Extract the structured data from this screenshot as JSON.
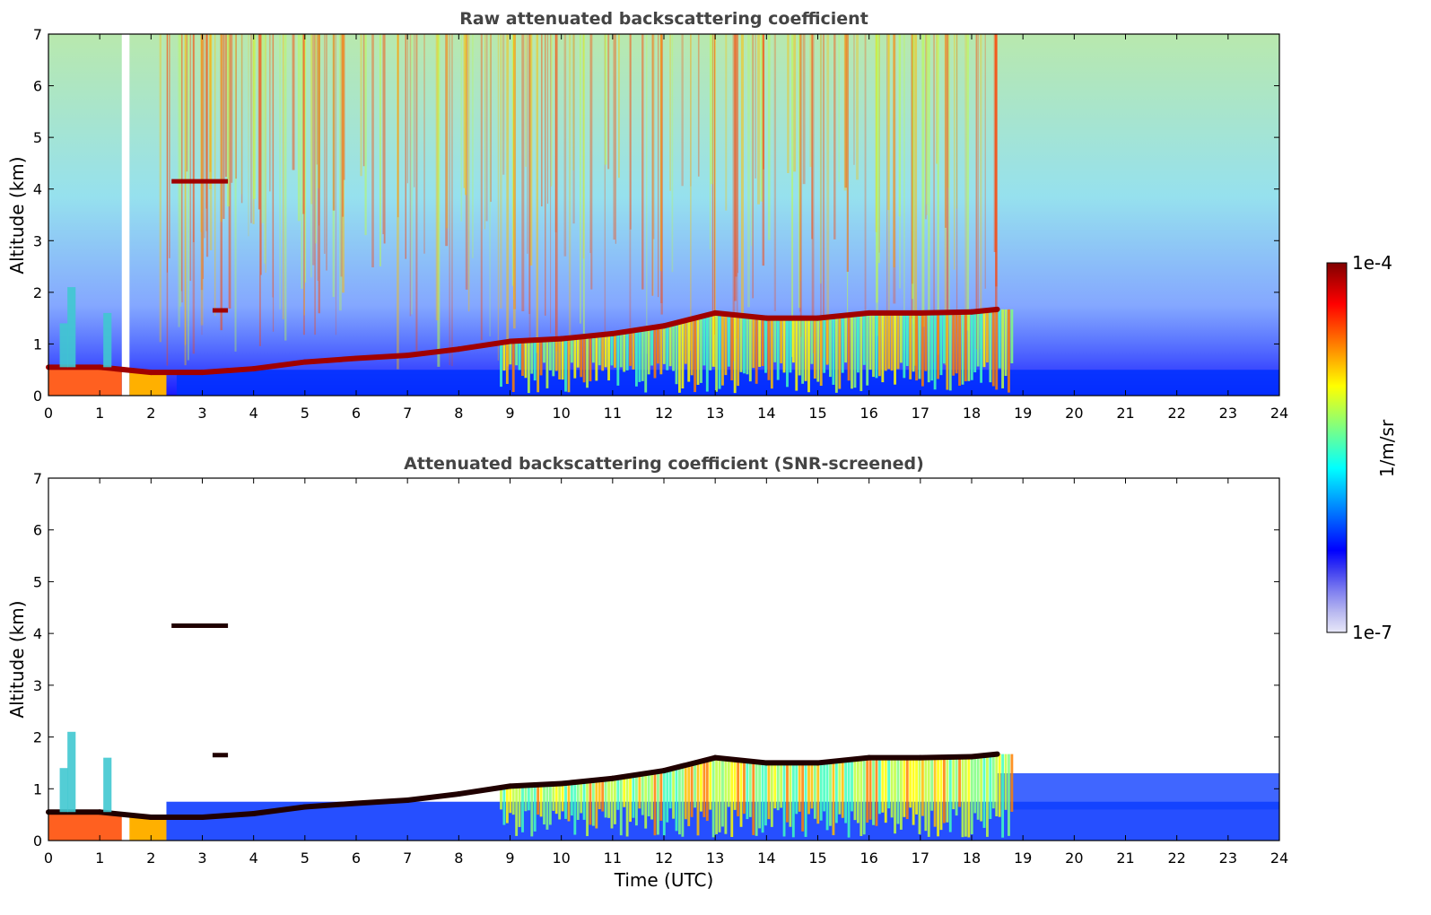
{
  "chart_data": [
    {
      "type": "heatmap",
      "title": "Raw attenuated backscattering coefficient",
      "xlabel": "",
      "ylabel": "Altitude (km)",
      "xlim": [
        0,
        24
      ],
      "ylim": [
        0,
        7
      ],
      "x_ticks": [
        0,
        1,
        2,
        3,
        4,
        5,
        6,
        7,
        8,
        9,
        10,
        11,
        12,
        13,
        14,
        15,
        16,
        17,
        18,
        19,
        20,
        21,
        22,
        23,
        24
      ],
      "y_ticks": [
        0,
        1,
        2,
        3,
        4,
        5,
        6,
        7
      ],
      "grid": false,
      "colorscale": "jet",
      "cloud_layer": [
        [
          0,
          0.55
        ],
        [
          1,
          0.55
        ],
        [
          2,
          0.45
        ],
        [
          3,
          0.45
        ],
        [
          4,
          0.52
        ],
        [
          5,
          0.65
        ],
        [
          6,
          0.72
        ],
        [
          7,
          0.78
        ],
        [
          8,
          0.9
        ],
        [
          9,
          1.05
        ],
        [
          10,
          1.1
        ],
        [
          11,
          1.2
        ],
        [
          12,
          1.35
        ],
        [
          13,
          1.6
        ],
        [
          14,
          1.5
        ],
        [
          15,
          1.5
        ],
        [
          16,
          1.6
        ],
        [
          17,
          1.6
        ],
        [
          18,
          1.62
        ],
        [
          18.5,
          1.67
        ]
      ],
      "elevated_layers": [
        {
          "x": [
            2.4,
            3.5
          ],
          "y": 4.15
        },
        {
          "x": [
            3.2,
            3.5
          ],
          "y": 1.65
        }
      ]
    },
    {
      "type": "heatmap",
      "title": "Attenuated backscattering coefficient (SNR-screened)",
      "xlabel": "Time (UTC)",
      "ylabel": "Altitude (km)",
      "xlim": [
        0,
        24
      ],
      "ylim": [
        0,
        7
      ],
      "x_ticks": [
        0,
        1,
        2,
        3,
        4,
        5,
        6,
        7,
        8,
        9,
        10,
        11,
        12,
        13,
        14,
        15,
        16,
        17,
        18,
        19,
        20,
        21,
        22,
        23,
        24
      ],
      "y_ticks": [
        0,
        1,
        2,
        3,
        4,
        5,
        6,
        7
      ],
      "grid": false,
      "colorscale": "jet"
    }
  ],
  "colorbar": {
    "label": "1/m/sr",
    "max_label": "1e-4",
    "min_label": "1e-7",
    "scale": "log",
    "colors": [
      "#e8e8f8",
      "#b8b8f0",
      "#8080f0",
      "#4040f0",
      "#0000ff",
      "#0040ff",
      "#0080ff",
      "#00c0ff",
      "#00ffff",
      "#40ffc0",
      "#80ff80",
      "#c0ff40",
      "#ffff00",
      "#ffc000",
      "#ff8000",
      "#ff4000",
      "#ff0000",
      "#c00000",
      "#800000"
    ]
  }
}
